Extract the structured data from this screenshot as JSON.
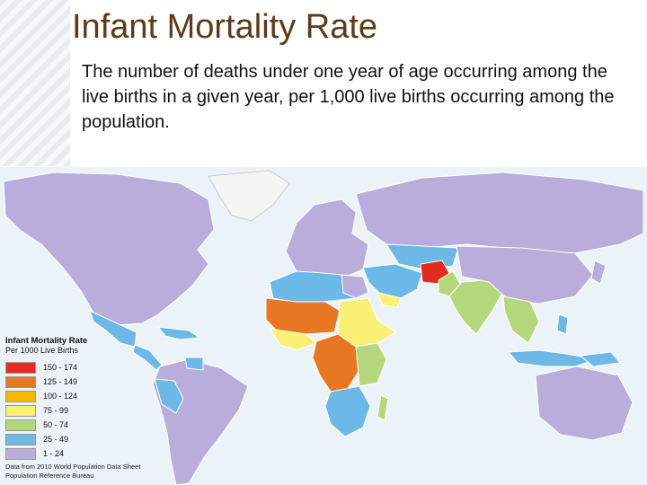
{
  "title": "Infant Mortality Rate",
  "description": "The number of deaths under one year of age occurring among the live births in a given year, per 1,000 live births occurring among the population.",
  "map": {
    "legend_title": "Infant Mortality Rate",
    "legend_subtitle": "Per 1000 Live Births",
    "legend": [
      {
        "label": "150 - 174",
        "color": "#e32b1f"
      },
      {
        "label": "125 - 149",
        "color": "#e87722"
      },
      {
        "label": "100 - 124",
        "color": "#f5b700"
      },
      {
        "label": "75 - 99",
        "color": "#fbf076"
      },
      {
        "label": "50 - 74",
        "color": "#b5d77b"
      },
      {
        "label": "25 - 49",
        "color": "#6cb8e6"
      },
      {
        "label": "1 - 24",
        "color": "#b9aedb"
      }
    ],
    "source_line1": "Data from 2010 World Population Data Sheet",
    "source_line2": "Population Reference Bureau"
  }
}
